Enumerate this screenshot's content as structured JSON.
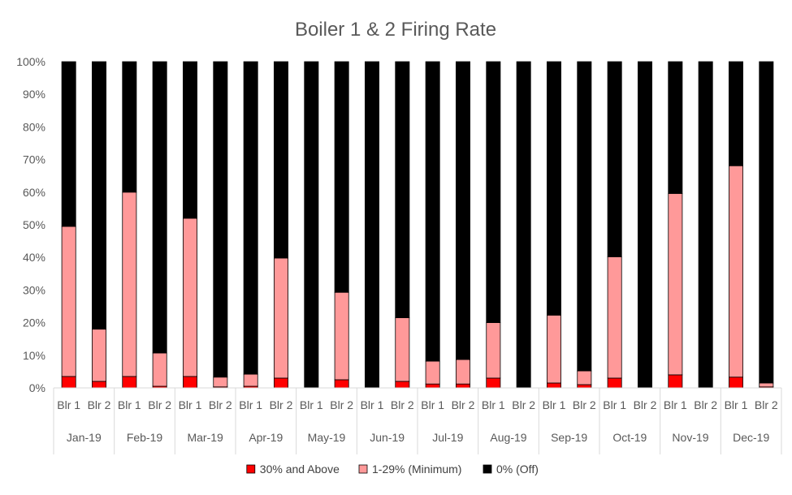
{
  "chart_data": {
    "type": "bar",
    "stacked": true,
    "title": "Boiler 1 & 2 Firing Rate",
    "xlabel": "",
    "ylabel": "",
    "ylim": [
      0,
      100
    ],
    "yticks": [
      "0%",
      "10%",
      "20%",
      "30%",
      "40%",
      "50%",
      "60%",
      "70%",
      "80%",
      "90%",
      "100%"
    ],
    "groups": [
      "Jan-19",
      "Feb-19",
      "Mar-19",
      "Apr-19",
      "May-19",
      "Jun-19",
      "Jul-19",
      "Aug-19",
      "Sep-19",
      "Oct-19",
      "Nov-19",
      "Dec-19"
    ],
    "subcategories": [
      "Blr 1",
      "Blr 2"
    ],
    "series": [
      {
        "name": "30% and Above",
        "color": "#ff0000",
        "values": [
          3.5,
          2,
          3.5,
          0.5,
          3.5,
          0.3,
          0.5,
          3,
          0,
          2.5,
          0,
          2,
          1.2,
          1.2,
          3,
          0,
          1.5,
          1,
          3,
          0,
          4,
          0,
          3.3,
          0.3
        ]
      },
      {
        "name": "1-29% (Minimum)",
        "color": "#ff9999",
        "values": [
          46,
          16,
          56.5,
          10.2,
          48.5,
          3,
          3.7,
          36.8,
          0,
          26.8,
          0,
          19.5,
          7,
          7.5,
          17,
          0,
          20.8,
          4.2,
          37.2,
          0,
          55.6,
          0,
          64.8,
          1.2
        ]
      },
      {
        "name": "0% (Off)",
        "color": "#000000",
        "values": [
          50.5,
          82,
          40,
          89.3,
          48,
          96.7,
          95.8,
          60.2,
          100,
          70.7,
          100,
          78.5,
          91.8,
          91.3,
          80,
          100,
          77.7,
          94.8,
          59.8,
          100,
          40.4,
          100,
          31.9,
          98.5
        ]
      }
    ],
    "legend": "bottom",
    "grid": false
  }
}
